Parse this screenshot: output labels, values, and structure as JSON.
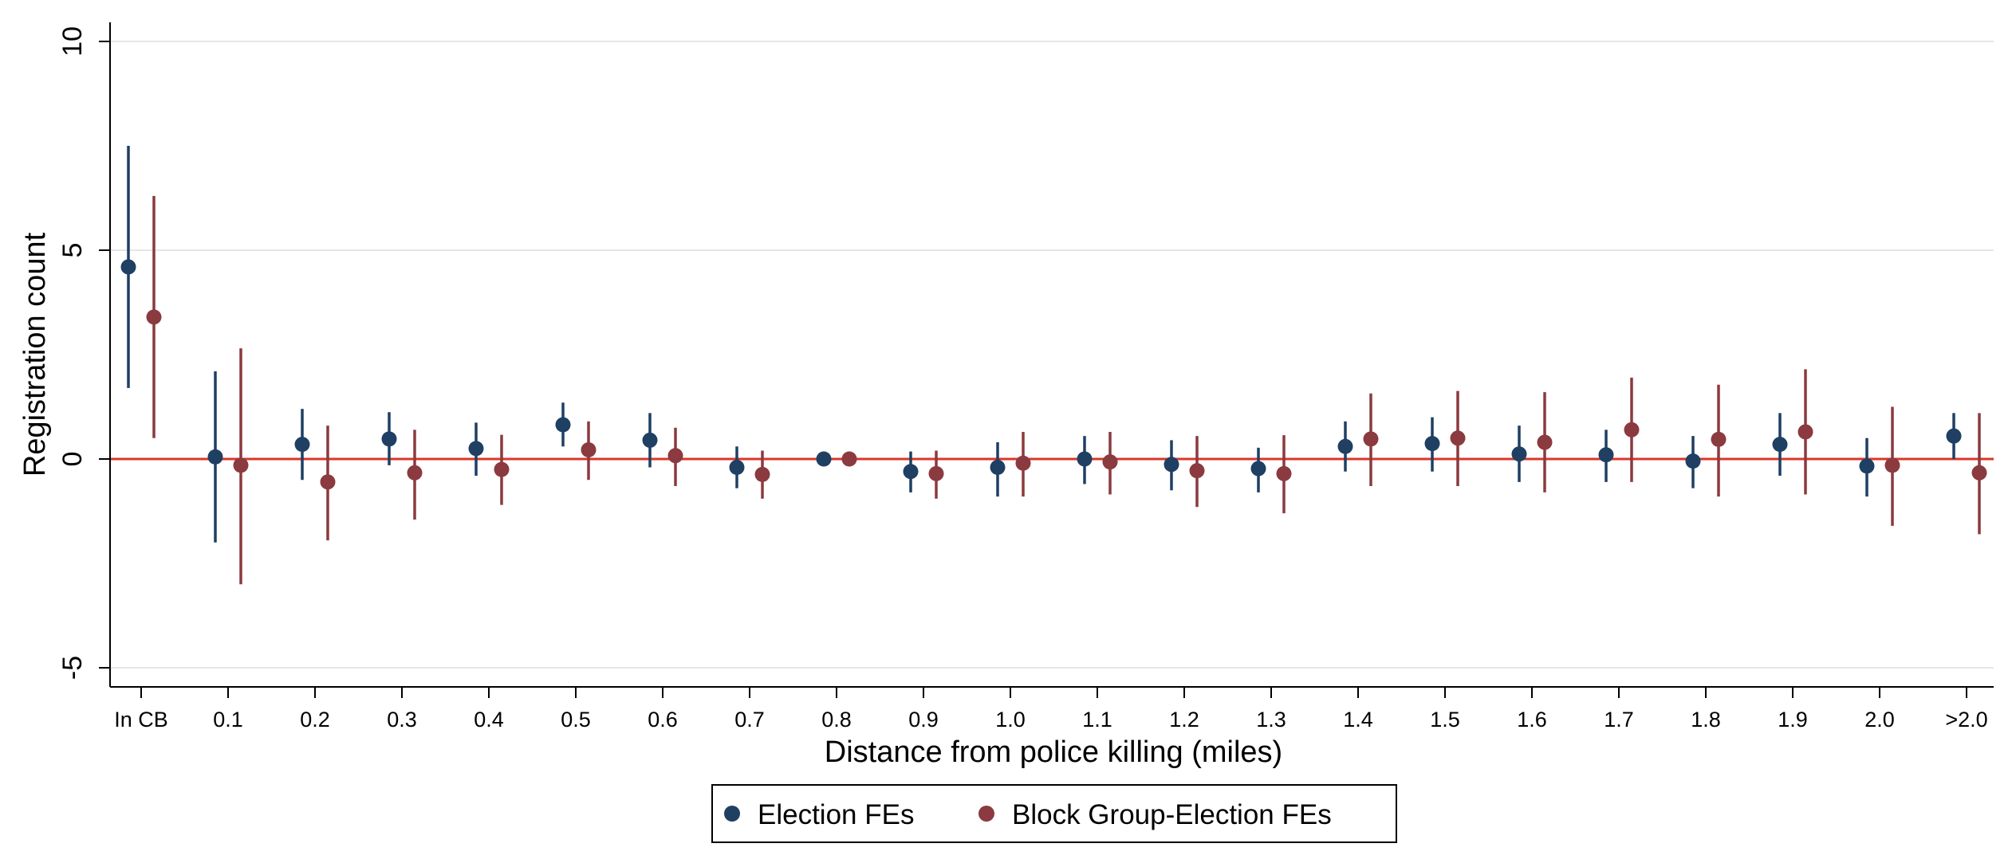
{
  "chart_data": {
    "type": "scatter",
    "subtype": "coefficient plot with confidence intervals",
    "xlabel": "Distance from police killing (miles)",
    "ylabel": "Registration count",
    "ylim": [
      -5,
      10
    ],
    "yticks": [
      -5,
      0,
      5,
      10
    ],
    "grid": true,
    "reference_line": 0,
    "legend_position": "bottom-center",
    "categories": [
      "In CB",
      "0.1",
      "0.2",
      "0.3",
      "0.4",
      "0.5",
      "0.6",
      "0.7",
      "0.8",
      "0.9",
      "1.0",
      "1.1",
      "1.2",
      "1.3",
      "1.4",
      "1.5",
      "1.6",
      "1.7",
      "1.8",
      "1.9",
      "2.0",
      ">2.0"
    ],
    "series": [
      {
        "name": "Election FEs",
        "color": "#1f3f63",
        "values": [
          4.6,
          0.05,
          0.35,
          0.48,
          0.25,
          0.82,
          0.45,
          -0.2,
          0.0,
          -0.3,
          -0.2,
          0.0,
          -0.13,
          -0.23,
          0.3,
          0.37,
          0.12,
          0.1,
          -0.05,
          0.35,
          -0.17,
          0.55
        ],
        "lower": [
          1.7,
          -2.0,
          -0.5,
          -0.15,
          -0.4,
          0.3,
          -0.2,
          -0.7,
          0.0,
          -0.8,
          -0.9,
          -0.6,
          -0.75,
          -0.8,
          -0.3,
          -0.3,
          -0.55,
          -0.55,
          -0.7,
          -0.4,
          -0.9,
          0.0
        ],
        "upper": [
          7.5,
          2.1,
          1.2,
          1.12,
          0.87,
          1.35,
          1.1,
          0.3,
          0.0,
          0.18,
          0.4,
          0.55,
          0.45,
          0.27,
          0.9,
          1.0,
          0.8,
          0.7,
          0.55,
          1.1,
          0.5,
          1.1
        ]
      },
      {
        "name": "Block Group-Election FEs",
        "color": "#8b3a3f",
        "values": [
          3.4,
          -0.15,
          -0.55,
          -0.33,
          -0.25,
          0.22,
          0.08,
          -0.37,
          0.0,
          -0.35,
          -0.1,
          -0.07,
          -0.28,
          -0.35,
          0.48,
          0.5,
          0.4,
          0.7,
          0.47,
          0.65,
          -0.15,
          -0.33
        ],
        "lower": [
          0.5,
          -3.0,
          -1.95,
          -1.45,
          -1.1,
          -0.5,
          -0.65,
          -0.95,
          0.0,
          -0.95,
          -0.9,
          -0.85,
          -1.15,
          -1.3,
          -0.65,
          -0.65,
          -0.8,
          -0.55,
          -0.9,
          -0.85,
          -1.6,
          -1.8
        ],
        "upper": [
          6.3,
          2.65,
          0.8,
          0.7,
          0.58,
          0.9,
          0.75,
          0.2,
          0.0,
          0.2,
          0.65,
          0.65,
          0.55,
          0.57,
          1.57,
          1.63,
          1.6,
          1.95,
          1.78,
          2.15,
          1.25,
          1.1
        ]
      }
    ],
    "colors": {
      "reference_line": "#d9372a",
      "grid": "#e6e6e6",
      "axis": "#000000"
    }
  }
}
